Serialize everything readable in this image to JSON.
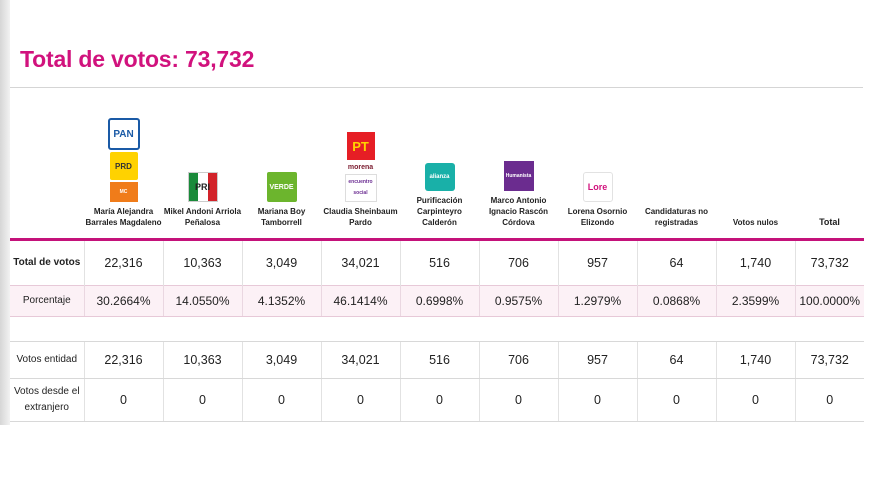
{
  "title": "Total de votos: 73,732",
  "candidates": [
    {
      "name": "María Alejandra Barrales Magdaleno",
      "logos": [
        "PAN",
        "PRD",
        "MC"
      ],
      "votes": "22,316",
      "pct": "30.2664%",
      "entity": "22,316",
      "abroad": "0"
    },
    {
      "name": "Mikel Andoni Arriola Peñalosa",
      "logos": [
        "PRI"
      ],
      "votes": "10,363",
      "pct": "14.0550%",
      "entity": "10,363",
      "abroad": "0"
    },
    {
      "name": "Mariana Boy Tamborrell",
      "logos": [
        "VERDE"
      ],
      "votes": "3,049",
      "pct": "4.1352%",
      "entity": "3,049",
      "abroad": "0"
    },
    {
      "name": "Claudia Sheinbaum Pardo",
      "logos": [
        "PT",
        "morena",
        "encuentro social"
      ],
      "votes": "34,021",
      "pct": "46.1414%",
      "entity": "34,021",
      "abroad": "0"
    },
    {
      "name": "Purificación Carpinteyro Calderón",
      "logos": [
        "alianza"
      ],
      "votes": "516",
      "pct": "0.6998%",
      "entity": "516",
      "abroad": "0"
    },
    {
      "name": "Marco Antonio Ignacio Rascón Córdova",
      "logos": [
        "Humanista"
      ],
      "votes": "706",
      "pct": "0.9575%",
      "entity": "706",
      "abroad": "0"
    },
    {
      "name": "Lorena Osornio Elizondo",
      "logos": [
        "Lore"
      ],
      "votes": "957",
      "pct": "1.2979%",
      "entity": "957",
      "abroad": "0"
    },
    {
      "name": "Candidaturas no registradas",
      "logos": [],
      "votes": "64",
      "pct": "0.0868%",
      "entity": "64",
      "abroad": "0"
    },
    {
      "name": "Votos nulos",
      "logos": [],
      "votes": "1,740",
      "pct": "2.3599%",
      "entity": "1,740",
      "abroad": "0"
    },
    {
      "name": "Total",
      "logos": [],
      "votes": "73,732",
      "pct": "100.0000%",
      "entity": "73,732",
      "abroad": "0"
    }
  ],
  "row_labels": {
    "total": "Total de votos",
    "pct": "Porcentaje",
    "entity": "Votos entidad",
    "abroad": "Votos desde el extranjero"
  },
  "colors": {
    "accent": "#d1127d",
    "separator": "#c4127a",
    "pct_row_bg": "#fcf1f6"
  }
}
